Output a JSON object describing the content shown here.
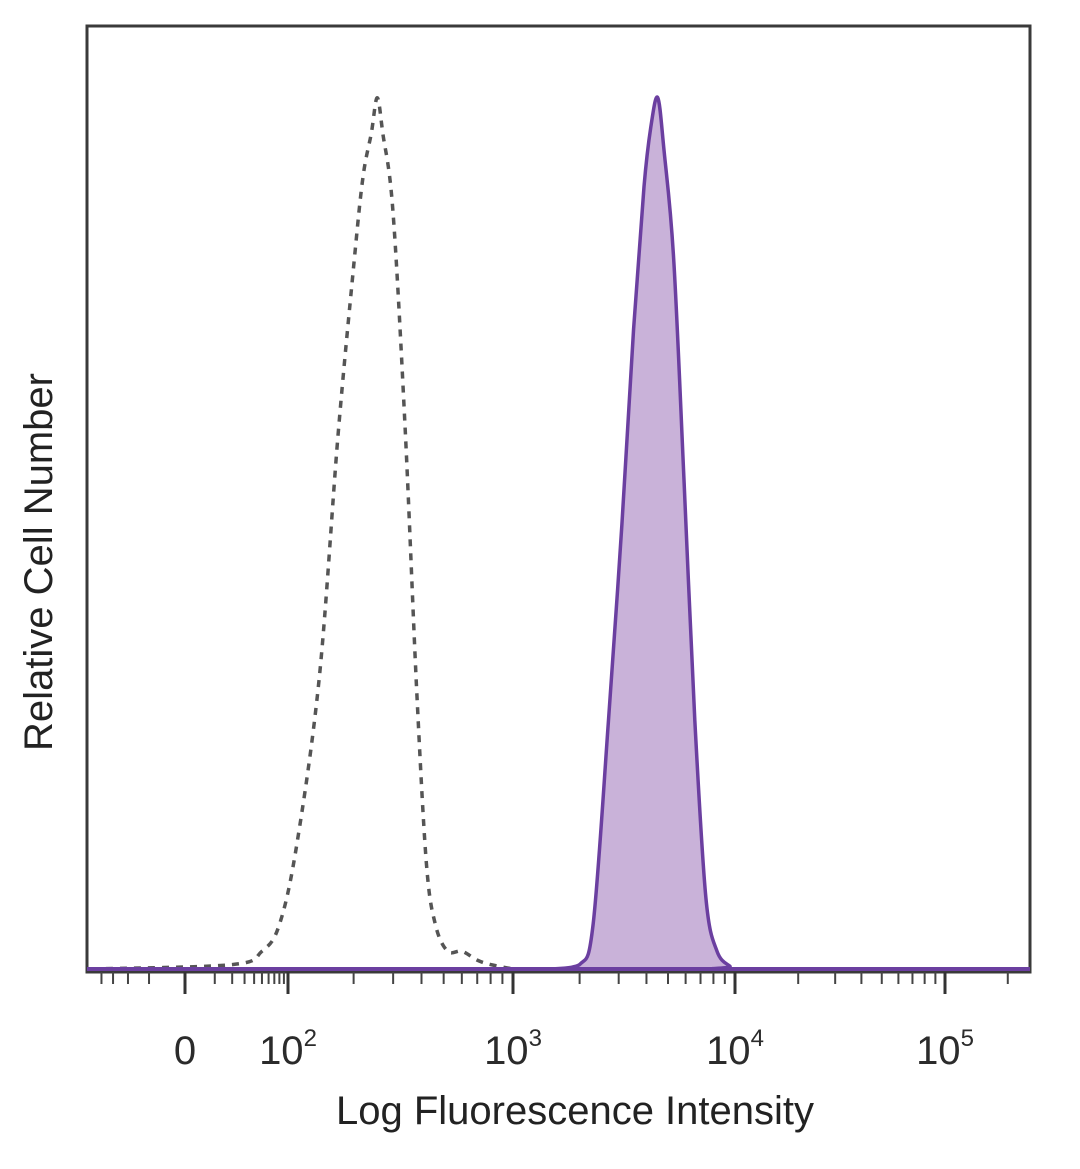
{
  "chart_data": {
    "type": "area",
    "title": "",
    "xlabel": "Log Fluorescence Intensity",
    "ylabel": "Relative Cell Number",
    "x_scale": "biexponential",
    "xlim": [
      -50,
      250000
    ],
    "ylim": [
      0,
      1
    ],
    "grid": false,
    "legend": "none",
    "x_ticks": [
      {
        "value": 0,
        "base": "0",
        "exp": ""
      },
      {
        "value": 100,
        "base": "10",
        "exp": "2"
      },
      {
        "value": 1000,
        "base": "10",
        "exp": "3"
      },
      {
        "value": 10000,
        "base": "10",
        "exp": "4"
      },
      {
        "value": 100000,
        "base": "10",
        "exp": "5"
      }
    ],
    "series": [
      {
        "style": "dashed-outline",
        "color": "#555555",
        "x": [
          -50,
          20,
          50,
          80,
          110,
          140,
          170,
          200,
          220,
          240,
          255,
          270,
          300,
          340,
          380,
          420,
          460,
          520,
          600,
          700,
          800,
          1000
        ],
        "y": [
          0,
          0.005,
          0.02,
          0.05,
          0.14,
          0.33,
          0.6,
          0.79,
          0.89,
          0.94,
          0.98,
          0.94,
          0.85,
          0.6,
          0.32,
          0.12,
          0.05,
          0.02,
          0.02,
          0.01,
          0.005,
          0
        ]
      },
      {
        "style": "filled",
        "color": "#6b3fa0",
        "fill": "#c9b2d9",
        "x": [
          1500,
          2000,
          2300,
          2700,
          3100,
          3500,
          3900,
          4200,
          4500,
          4800,
          5300,
          5900,
          6600,
          7400,
          8300,
          9500,
          10000,
          250000
        ],
        "y": [
          0,
          0.005,
          0.05,
          0.28,
          0.5,
          0.72,
          0.88,
          0.95,
          0.98,
          0.92,
          0.8,
          0.55,
          0.28,
          0.08,
          0.02,
          0.003,
          0,
          0
        ]
      }
    ]
  }
}
